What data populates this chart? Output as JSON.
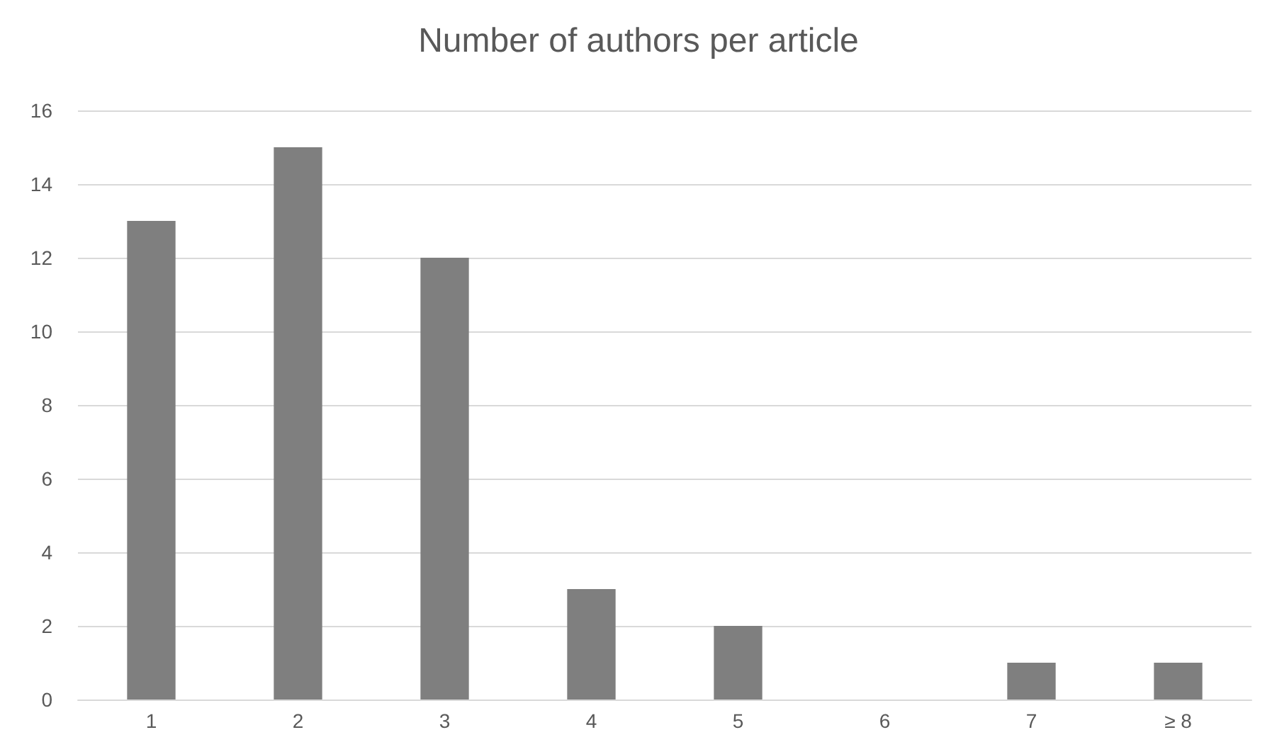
{
  "chart_data": {
    "type": "bar",
    "title": "Number of authors per article",
    "categories": [
      "1",
      "2",
      "3",
      "4",
      "5",
      "6",
      "7",
      "≥ 8"
    ],
    "values": [
      13,
      15,
      12,
      3,
      2,
      0,
      1,
      1
    ],
    "color": "#7f7f7f",
    "ylim": [
      0,
      16
    ],
    "yticks": [
      0,
      2,
      4,
      6,
      8,
      10,
      12,
      14,
      16
    ],
    "grid": "y"
  }
}
